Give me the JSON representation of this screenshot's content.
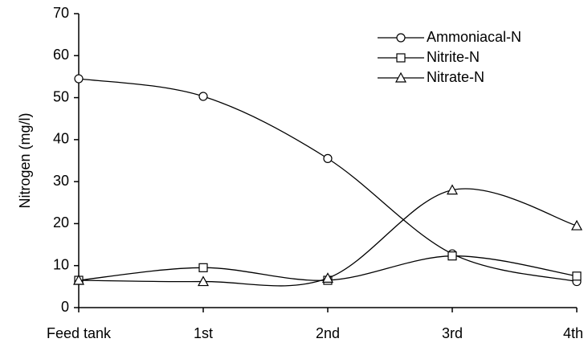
{
  "chart_data": {
    "type": "line",
    "title": null,
    "y_label": "Nitrogen  (mg/l)",
    "categories": [
      "Feed tank",
      "1st",
      "2nd",
      "3rd",
      "4th"
    ],
    "series": [
      {
        "name": "Ammoniacal-N",
        "color": "#000000",
        "marker": "circle",
        "values": [
          54.5,
          50.3,
          35.5,
          12.8,
          6.2
        ]
      },
      {
        "name": "Nitrite-N",
        "color": "#000000",
        "marker": "square",
        "values": [
          6.5,
          9.5,
          6.5,
          12.3,
          7.5
        ]
      },
      {
        "name": "Nitrate-N",
        "color": "#000000",
        "marker": "triangle",
        "values": [
          6.5,
          6.2,
          7,
          28,
          19.5
        ]
      }
    ],
    "ylim": [
      0,
      70
    ],
    "yticks": [
      0,
      10,
      20,
      30,
      40,
      50,
      60,
      70
    ],
    "smooth": true,
    "legend": "top-right"
  }
}
